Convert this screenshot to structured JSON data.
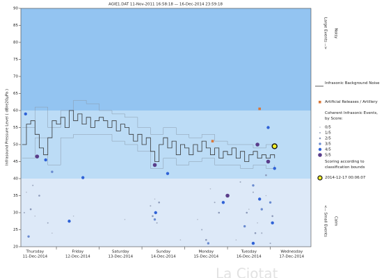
{
  "chart_data": {
    "type": "scatter",
    "title": "AGIE1.DAT   11-Nov-2011 16:58:18  —  16-Dec-2014 23:59:18",
    "y_label": "Infrasound Pressure Level  ( dBre20µPa )",
    "ylim": [
      20,
      90
    ],
    "yticks": [
      20,
      25,
      30,
      35,
      40,
      45,
      50,
      55,
      60,
      65,
      70,
      75,
      80,
      85,
      90
    ],
    "xlim": [
      0.17,
      6.95
    ],
    "days": [
      {
        "day": "Thursday",
        "date": "11-Dec-2014"
      },
      {
        "day": "Friday",
        "date": "12-Dec-2014"
      },
      {
        "day": "Saturday",
        "date": "13-Dec-2014"
      },
      {
        "day": "Sunday",
        "date": "14-Dec-2014"
      },
      {
        "day": "Monday",
        "date": "15-Dec-2014"
      },
      {
        "day": "Tuesday",
        "date": "16-Dec-2014"
      },
      {
        "day": "Wednesday",
        "date": "17-Dec-2014"
      }
    ],
    "bands": [
      {
        "from": 60,
        "to": 90,
        "color": "#93c4f1"
      },
      {
        "from": 40,
        "to": 60,
        "color": "#bcdcf6"
      },
      {
        "from": 20,
        "to": 40,
        "color": "#dde9f8"
      }
    ],
    "side_labels": {
      "large": "Large Events -->",
      "noisy": "Noisy",
      "small": "<-- Small Events",
      "calm": "Calm"
    },
    "noise": {
      "name": "Infrasonic Background Noise",
      "color": "#333333",
      "x": [
        0.2,
        0.3,
        0.4,
        0.5,
        0.6,
        0.7,
        0.8,
        0.9,
        1.0,
        1.1,
        1.2,
        1.3,
        1.4,
        1.5,
        1.6,
        1.7,
        1.8,
        1.9,
        2.0,
        2.1,
        2.2,
        2.3,
        2.4,
        2.5,
        2.6,
        2.7,
        2.8,
        2.9,
        3.0,
        3.1,
        3.2,
        3.3,
        3.4,
        3.5,
        3.6,
        3.7,
        3.8,
        3.9,
        4.0,
        4.1,
        4.2,
        4.3,
        4.4,
        4.5,
        4.6,
        4.7,
        4.8,
        4.9,
        5.0,
        5.1,
        5.2,
        5.3,
        5.4,
        5.5,
        5.6,
        5.7,
        5.8,
        5.9,
        6.0,
        6.1
      ],
      "values": [
        50,
        56,
        57,
        53,
        49,
        47,
        52,
        57,
        56,
        58,
        55,
        60,
        57,
        59,
        56,
        58,
        55,
        57,
        58,
        57,
        55,
        57,
        54,
        56,
        55,
        53,
        51,
        53,
        50,
        52,
        48,
        45,
        50,
        52,
        49,
        51,
        47,
        50,
        49,
        47,
        50,
        48,
        51,
        49,
        47,
        49,
        46,
        48,
        47,
        49,
        46,
        48,
        45,
        47,
        48,
        46,
        47,
        46,
        47,
        46
      ]
    },
    "envelopes": [
      {
        "color": "#8a9aab",
        "x": [
          0.2,
          0.5,
          0.8,
          1.1,
          1.4,
          1.7,
          2.0,
          2.3,
          2.6,
          2.9,
          3.2,
          3.5,
          3.8,
          4.1,
          4.4,
          4.7,
          5.0,
          5.3,
          5.6,
          5.9,
          6.1
        ],
        "values": [
          55,
          61,
          55,
          60,
          63,
          62,
          60,
          59,
          58,
          55,
          53,
          55,
          53,
          52,
          53,
          51,
          50,
          50,
          49,
          50,
          49
        ]
      },
      {
        "color": "#8a9aab",
        "x": [
          0.2,
          0.5,
          0.8,
          1.1,
          1.4,
          1.7,
          2.0,
          2.3,
          2.6,
          2.9,
          3.2,
          3.5,
          3.8,
          4.1,
          4.4,
          4.7,
          5.0,
          5.3,
          5.6,
          5.9,
          6.1
        ],
        "values": [
          46,
          52,
          44,
          52,
          53,
          53,
          53,
          51,
          50,
          48,
          43,
          46,
          44,
          45,
          46,
          44,
          44,
          43,
          44,
          43,
          44
        ]
      }
    ],
    "artillery": {
      "name": "Artificial Releases / Artillery",
      "color": "#d9773a",
      "x": [
        4.65,
        5.75
      ],
      "values": [
        51,
        60.5
      ]
    },
    "events_title": "Coherent Infrasonic Events, by Score:",
    "series": [
      {
        "name": "0/5",
        "color": "#b0b8c8",
        "x": [
          0.3,
          0.5,
          0.9,
          1.4,
          2.6,
          3.3,
          3.9,
          4.3,
          4.6,
          5.2,
          5.5,
          5.7,
          5.9
        ],
        "values": [
          36,
          29,
          24,
          29,
          28,
          34,
          22,
          28,
          37,
          22,
          31,
          27,
          35
        ]
      },
      {
        "name": "1/5",
        "color": "#9aa6bd",
        "x": [
          0.25,
          0.45,
          0.8,
          3.2,
          3.35,
          4.4,
          4.7,
          5.3,
          5.6,
          5.8,
          6.0
        ],
        "values": [
          30,
          38,
          27,
          32,
          27,
          25,
          33,
          39,
          36,
          24,
          21
        ]
      },
      {
        "name": "2/5",
        "color": "#8a98b8",
        "x": [
          0.4,
          0.6,
          3.25,
          3.4,
          4.5,
          4.8,
          5.45,
          5.65,
          5.9,
          6.05
        ],
        "values": [
          31,
          35,
          29,
          33,
          22,
          30,
          30,
          24,
          41,
          29
        ]
      },
      {
        "name": "3/5",
        "color": "#6a8bd0",
        "x": [
          0.35,
          0.9,
          3.3,
          4.55,
          5.4,
          5.6,
          5.8,
          6.0
        ],
        "values": [
          23,
          42,
          28,
          21,
          26,
          38,
          31,
          33
        ]
      },
      {
        "name": "4/5",
        "color": "#2f62d6",
        "x": [
          0.28,
          0.75,
          1.3,
          1.62,
          3.32,
          3.6,
          4.9,
          5.6,
          5.75,
          5.95,
          6.05,
          6.1
        ],
        "values": [
          59,
          45.5,
          27.5,
          40.3,
          30,
          41.5,
          33,
          21,
          34,
          55,
          27,
          43
        ]
      },
      {
        "name": "5/5",
        "color": "#5a3d8a",
        "x": [
          0.55,
          3.3,
          5.0,
          5.7,
          5.95
        ],
        "values": [
          46.5,
          44,
          35,
          50,
          45
        ]
      }
    ],
    "scoring_note": "Scoring according to classification bounds",
    "highlight": {
      "name": "2014-12-17 00:06:07",
      "color": "#f2ef2a",
      "x": 6.1,
      "value": 49.5
    },
    "watermark": "La Ciotat"
  }
}
